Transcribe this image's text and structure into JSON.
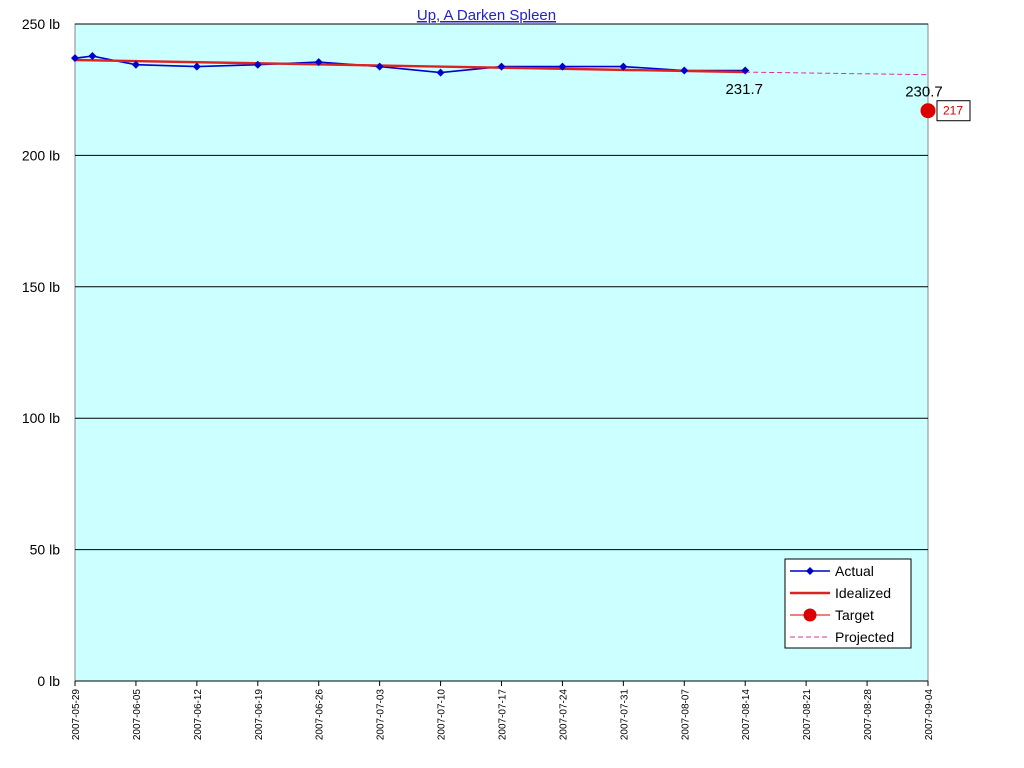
{
  "chart_data": {
    "type": "line",
    "title": "Up, A Darken Spleen",
    "y_unit": "lb",
    "ylim": [
      0,
      250
    ],
    "yticks": [
      0,
      50,
      100,
      150,
      200,
      250
    ],
    "xlim": [
      "2007-05-29",
      "2007-09-04"
    ],
    "x_tick_labels": [
      "2007-05-29",
      "2007-06-05",
      "2007-06-12",
      "2007-06-19",
      "2007-06-26",
      "2007-07-03",
      "2007-07-10",
      "2007-07-17",
      "2007-07-24",
      "2007-07-31",
      "2007-08-07",
      "2007-08-14",
      "2007-08-21",
      "2007-08-28",
      "2007-09-04"
    ],
    "grid": true,
    "background_color": "#ccffff",
    "legend_placement": "bottom-right",
    "series": [
      {
        "name": "Actual",
        "style": "line-diamond",
        "color": "#0000cc",
        "points": [
          {
            "x": "2007-05-29",
            "y": 237.0
          },
          {
            "x": "2007-05-31",
            "y": 237.8
          },
          {
            "x": "2007-06-05",
            "y": 234.5
          },
          {
            "x": "2007-06-12",
            "y": 233.8
          },
          {
            "x": "2007-06-19",
            "y": 234.5
          },
          {
            "x": "2007-06-26",
            "y": 235.5
          },
          {
            "x": "2007-07-03",
            "y": 233.8
          },
          {
            "x": "2007-07-10",
            "y": 231.5
          },
          {
            "x": "2007-07-17",
            "y": 233.8
          },
          {
            "x": "2007-07-24",
            "y": 233.8
          },
          {
            "x": "2007-07-31",
            "y": 233.8
          },
          {
            "x": "2007-08-07",
            "y": 232.3
          },
          {
            "x": "2007-08-14",
            "y": 232.3
          }
        ]
      },
      {
        "name": "Idealized",
        "style": "line",
        "color": "#dd2222",
        "points": [
          {
            "x": "2007-05-29",
            "y": 236.3
          },
          {
            "x": "2007-08-14",
            "y": 231.7
          }
        ]
      },
      {
        "name": "Target",
        "style": "dot",
        "color": "#dd0000",
        "points": [
          {
            "x": "2007-09-04",
            "y": 217
          }
        ]
      },
      {
        "name": "Projected",
        "style": "dashed",
        "color": "#dd3399",
        "points": [
          {
            "x": "2007-08-14",
            "y": 231.7
          },
          {
            "x": "2007-09-04",
            "y": 230.7
          }
        ]
      }
    ],
    "annotations": [
      {
        "text": "231.7",
        "x": "2007-08-14",
        "y": 231.7,
        "kind": "value"
      },
      {
        "text": "230.7",
        "x": "2007-09-04",
        "y": 230.7,
        "kind": "value"
      },
      {
        "text": "217",
        "x": "2007-09-04",
        "y": 217,
        "kind": "target-box"
      }
    ]
  }
}
